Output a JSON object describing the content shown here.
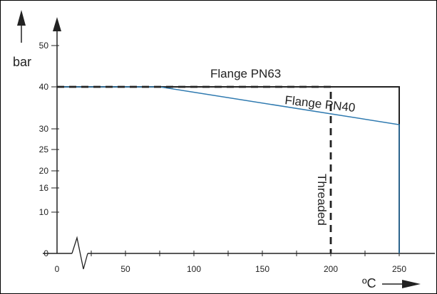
{
  "chart_data": {
    "type": "line",
    "title": "",
    "xlabel": "ºC",
    "ylabel": "bar",
    "xlim": [
      0,
      260
    ],
    "ylim": [
      0,
      55
    ],
    "x_ticks": [
      0,
      50,
      100,
      150,
      200,
      250
    ],
    "x_tick_labels": [
      "0",
      "50",
      "100",
      "150",
      "200",
      "250"
    ],
    "y_ticks": [
      0,
      10,
      16,
      20,
      25,
      30,
      40,
      50
    ],
    "y_tick_labels": [
      "0",
      "10",
      "16",
      "20",
      "25",
      "30",
      "40",
      "50"
    ],
    "axis_break": "x-axis, near origin",
    "grid": false,
    "colors": {
      "pn40": "#2f7ab0",
      "pn63": "#222222",
      "threaded": "#222222"
    },
    "series": [
      {
        "name": "Flange PN63",
        "style": "solid",
        "color": "#222222",
        "x": [
          0,
          250,
          250
        ],
        "y": [
          40,
          40,
          0
        ]
      },
      {
        "name": "Flange PN40",
        "style": "solid",
        "color": "#2f7ab0",
        "x": [
          0,
          75,
          250,
          250
        ],
        "y": [
          40,
          40,
          31,
          0
        ]
      },
      {
        "name": "Threaded",
        "style": "dashed",
        "color": "#222222",
        "x": [
          0,
          200,
          200
        ],
        "y": [
          40,
          40,
          0
        ]
      }
    ]
  }
}
